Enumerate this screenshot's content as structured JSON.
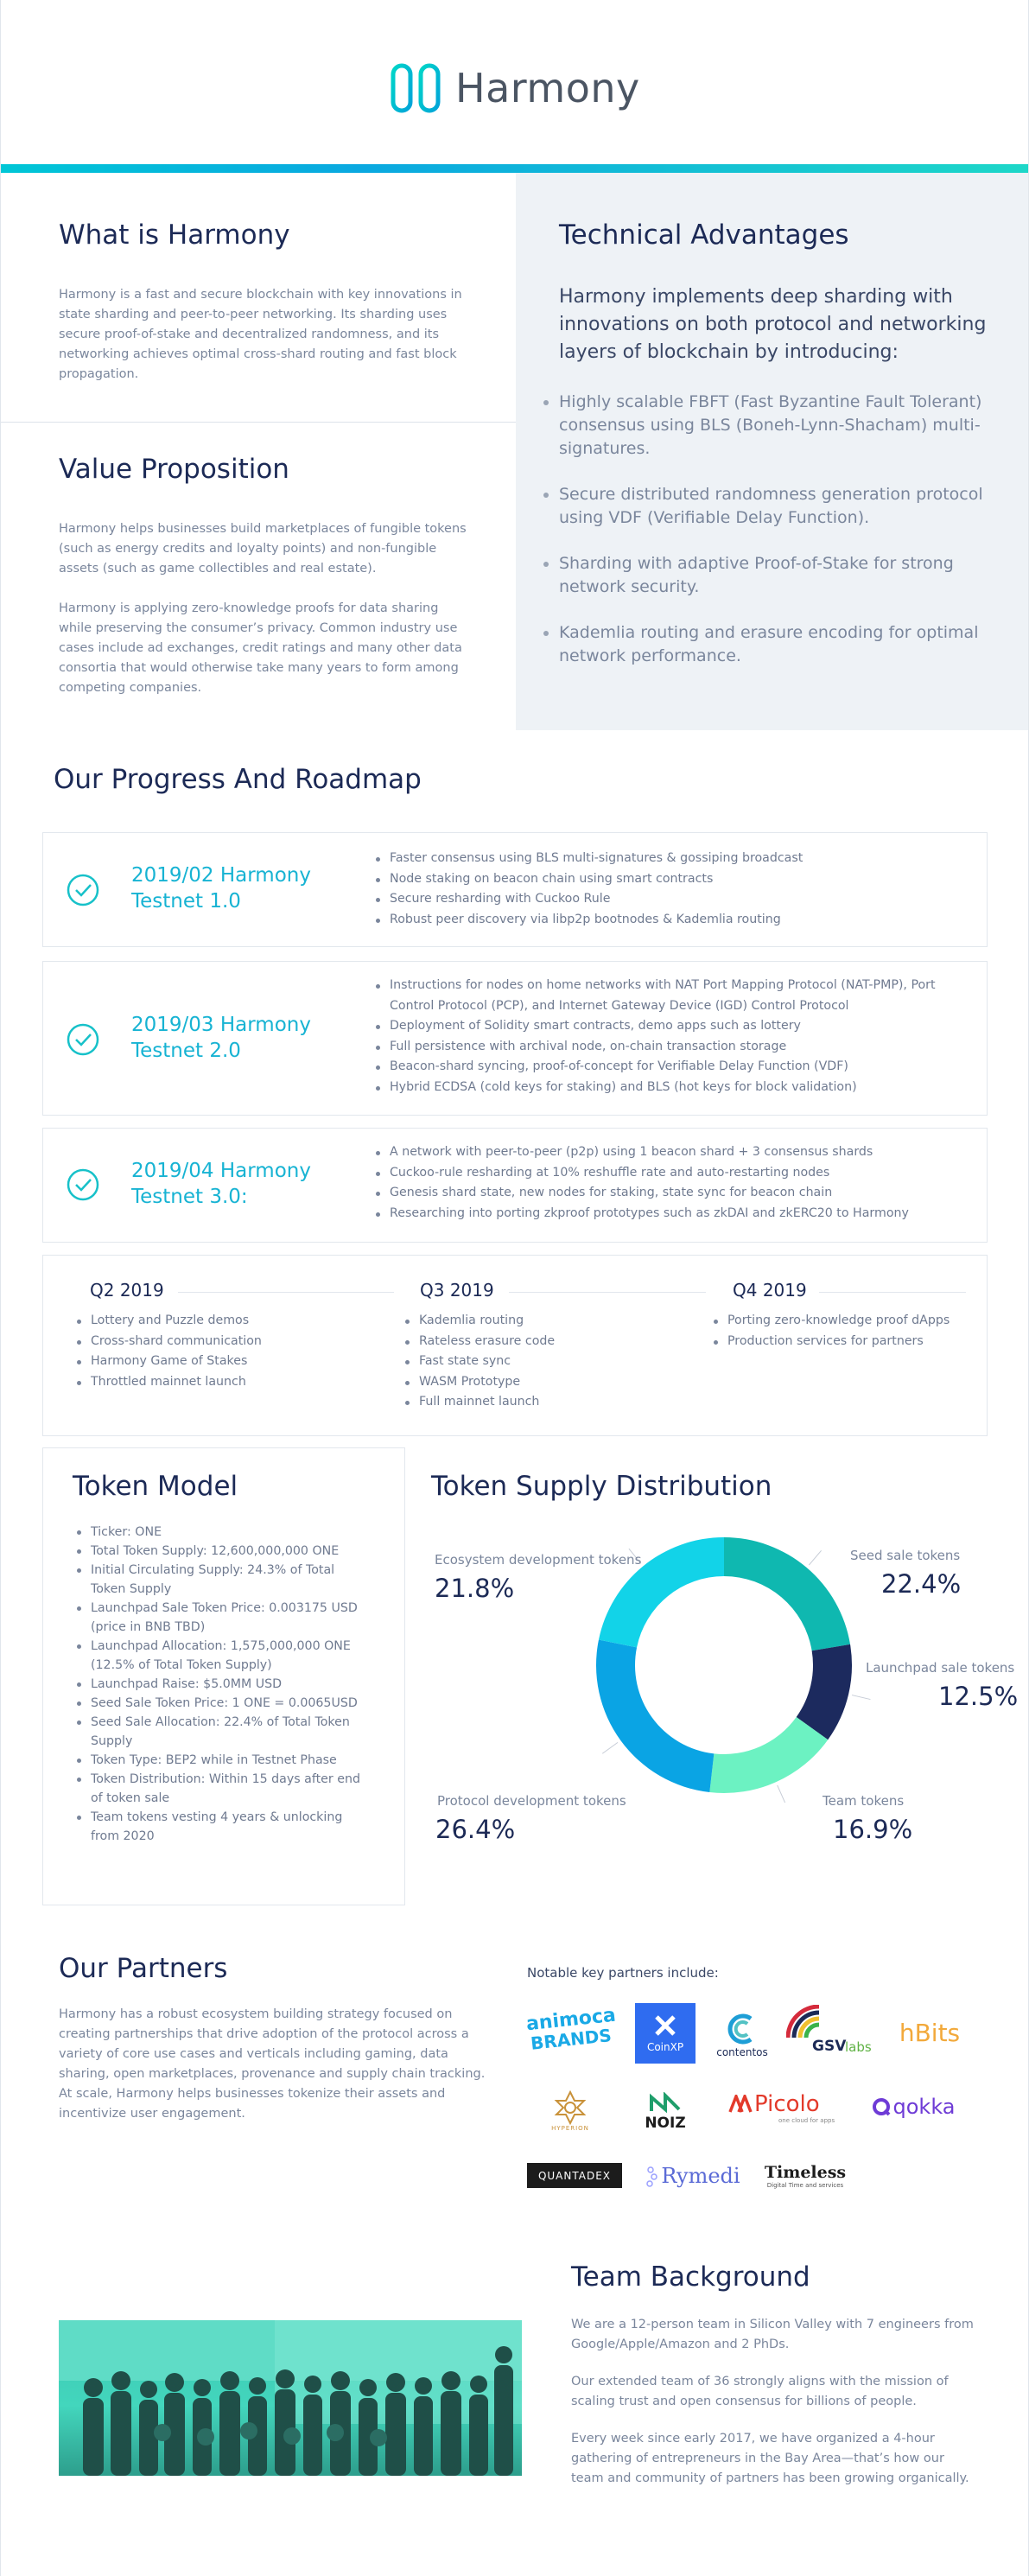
{
  "brand": {
    "name": "Harmony",
    "colors": {
      "accent": "#00c6d6",
      "navy": "#1c2a56",
      "teal_text": "#17b3d3",
      "muted": "#7a869c"
    }
  },
  "intro": {
    "what_title": "What is Harmony",
    "what_body": "Harmony is a fast and secure blockchain with key innovations in state sharding and peer-to-peer networking. Its sharding uses secure proof-of-stake and decentralized randomness, and its networking achieves optimal cross-shard routing and fast block propagation.",
    "value_title": "Value Proposition",
    "value_body_1": "Harmony helps businesses build marketplaces of fungible tokens (such as energy credits and loyalty points) and non-fungible assets (such as game collectibles and real estate).",
    "value_body_2": "Harmony is applying zero-knowledge proofs for data sharing while preserving the consumer’s privacy. Common industry use cases include ad exchanges, credit ratings and many other data consortia that would otherwise take many years to form among competing companies.",
    "tech_title": "Technical Advantages",
    "tech_lead": "Harmony implements deep sharding with innovations on both protocol and networking layers of blockchain by introducing:",
    "tech_items": [
      "Highly scalable FBFT (Fast Byzantine Fault Tolerant) consensus using BLS (Boneh-Lynn-Shacham) multi-signatures.",
      "Secure distributed randomness generation protocol using VDF (Verifiable Delay Function).",
      "Sharding with adaptive Proof-of-Stake for strong network security.",
      "Kademlia routing and erasure encoding for optimal network performance."
    ]
  },
  "roadmap": {
    "title": "Our Progress And Roadmap",
    "milestones": [
      {
        "title_1": "2019/02 Harmony",
        "title_2": "Testnet 1.0",
        "items": [
          "Faster consensus using BLS multi-signatures & gossiping broadcast",
          "Node staking on beacon chain using smart contracts",
          "Secure resharding with Cuckoo Rule",
          "Robust peer discovery via libp2p bootnodes & Kademlia routing"
        ]
      },
      {
        "title_1": "2019/03 Harmony",
        "title_2": "Testnet 2.0",
        "items": [
          "Instructions for nodes on home networks with NAT Port Mapping Protocol (NAT-PMP), Port Control Protocol (PCP), and Internet Gateway Device (IGD) Control Protocol",
          "Deployment of Solidity smart contracts, demo apps such as lottery",
          "Full persistence with archival node, on-chain transaction storage",
          "Beacon-shard syncing, proof-of-concept for Verifiable Delay Function (VDF)",
          "Hybrid ECDSA (cold keys for staking) and BLS (hot keys for block validation)"
        ]
      },
      {
        "title_1": "2019/04 Harmony",
        "title_2": "Testnet 3.0:",
        "items": [
          "A network with peer-to-peer (p2p) using 1 beacon shard + 3 consensus shards",
          "Cuckoo-rule resharding at 10% reshuffle rate and auto-restarting nodes",
          "Genesis shard state, new nodes for staking, state sync for beacon chain",
          "Researching into porting zkproof prototypes such as zkDAI and zkERC20 to Harmony"
        ]
      }
    ],
    "quarters": [
      {
        "label": "Q2 2019",
        "items": [
          "Lottery and Puzzle demos",
          "Cross-shard communication",
          "Harmony Game of Stakes",
          "Throttled mainnet launch"
        ]
      },
      {
        "label": "Q3 2019",
        "items": [
          "Kademlia routing",
          "Rateless erasure code",
          "Fast state sync",
          "WASM Prototype",
          "Full mainnet launch"
        ]
      },
      {
        "label": "Q4 2019",
        "items": [
          "Porting zero-knowledge proof dApps",
          "Production services for partners"
        ]
      }
    ]
  },
  "token_model": {
    "title": "Token Model",
    "items": [
      "Ticker: ONE",
      "Total Token Supply: 12,600,000,000 ONE",
      "Initial Circulating Supply: 24.3% of Total Token Supply",
      "Launchpad Sale Token Price: 0.003175 USD (price in BNB TBD)",
      "Launchpad Allocation: 1,575,000,000 ONE (12.5% of Total Token Supply)",
      "Launchpad Raise: $5.0MM USD",
      "Seed Sale Token Price: 1 ONE = 0.0065USD",
      "Seed Sale Allocation: 22.4% of Total Token Supply",
      "Token Type: BEP2 while in Testnet Phase",
      "Token Distribution: Within 15 days after end of token sale",
      "Team tokens vesting 4 years & unlocking from 2020"
    ]
  },
  "chart_data": {
    "type": "pie",
    "title": "Token Supply Distribution",
    "slices": [
      {
        "label": "Seed sale tokens",
        "value": 22.4,
        "display": "22.4%",
        "color": "#0fb8b0"
      },
      {
        "label": "Launchpad sale tokens",
        "value": 12.5,
        "display": "12.5%",
        "color": "#1c2a5e"
      },
      {
        "label": "Team tokens",
        "value": 16.9,
        "display": "16.9%",
        "color": "#6cf2c2"
      },
      {
        "label": "Protocol development tokens",
        "value": 26.4,
        "display": "26.4%",
        "color": "#0aa4e4"
      },
      {
        "label": "Ecosystem development tokens",
        "value": 21.8,
        "display": "21.8%",
        "color": "#12d3e8"
      }
    ],
    "donut": true
  },
  "partners": {
    "title": "Our Partners",
    "body": "Harmony has a robust ecosystem building strategy focused on creating partnerships that drive adoption of the protocol across a variety of core use cases and verticals including gaming, data sharing, open marketplaces, provenance and supply chain tracking. At scale, Harmony helps businesses tokenize their assets and incentivize user engagement.",
    "notable": "Notable key partners include:",
    "logos": {
      "animoca_1": "animoca",
      "animoca_2": "BRANDS",
      "coinxp": "CoinXP",
      "contentos": "contentos",
      "gsvlabs_1": "GSV",
      "gsvlabs_2": "labs",
      "hbits": "hBits",
      "hyperion": "HYPERION",
      "noiz": "NOIZ",
      "picolo": "Picolo",
      "picolo_tag": "one cloud for apps",
      "qokka": "qokka",
      "quantadex": "QUANTADEX",
      "rymedi": "Rymedi",
      "timeless": "Timeless",
      "timeless_tag": "Digital Time and services"
    }
  },
  "team": {
    "title": "Team Background",
    "para_1": "We are a 12-person team in Silicon Valley with 7 engineers from Google/Apple/Amazon and 2 PhDs.",
    "para_2": "Our extended team of 36 strongly aligns with the mission of scaling trust and open consensus for billions of people.",
    "para_3": "Every week since early 2017, we have organized a 4-hour gathering of entrepreneurs in the Bay Area—that’s how our team and community of partners has been growing organically."
  }
}
